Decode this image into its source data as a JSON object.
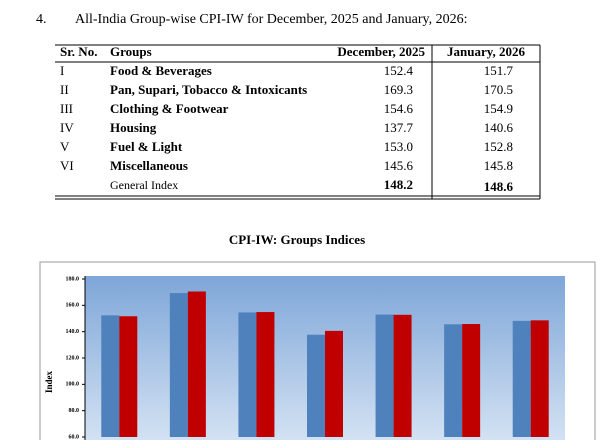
{
  "heading": {
    "number": "4.",
    "text": "All-India Group-wise CPI-IW for December, 2025 and January, 2026:"
  },
  "table": {
    "header": [
      "Sr. No.",
      "Groups",
      "December, 2025",
      "January, 2026"
    ],
    "rows": [
      [
        "I",
        "Food & Beverages",
        "152.4",
        "151.7"
      ],
      [
        "II",
        "Pan, Supari, Tobacco & Intoxicants",
        "169.3",
        "170.5"
      ],
      [
        "III",
        "Clothing & Footwear",
        "154.6",
        "154.9"
      ],
      [
        "IV",
        "Housing",
        "137.7",
        "140.6"
      ],
      [
        "V",
        "Fuel & Light",
        "153.0",
        "152.8"
      ],
      [
        "VI",
        "Miscellaneous",
        "145.6",
        "145.8"
      ]
    ],
    "total": {
      "label": "General Index",
      "values": [
        "148.2",
        "148.6"
      ]
    }
  },
  "chart_data": {
    "type": "bar",
    "title": "CPI-IW: Groups Indices",
    "y_label": "Index",
    "categories": [
      null,
      null,
      null,
      null,
      null,
      null,
      null
    ],
    "series": [
      {
        "color": "#4f81bd",
        "values": [
          152.4,
          169.3,
          154.6,
          137.7,
          153.0,
          145.6,
          148.2
        ]
      },
      {
        "color": "#c00000",
        "values": [
          151.7,
          170.5,
          154.9,
          140.6,
          152.8,
          145.8,
          148.6
        ]
      }
    ],
    "ylim": [
      60,
      180
    ],
    "yticks": [
      {
        "value": 60,
        "label": "60.0"
      },
      {
        "value": 80,
        "label": "80.0"
      },
      {
        "value": 100,
        "label": "100.0"
      },
      {
        "value": 120,
        "label": "120.0"
      },
      {
        "value": 140,
        "label": "140.0"
      },
      {
        "value": 160,
        "label": "160.0"
      },
      {
        "value": 180,
        "label": "180.0"
      }
    ]
  }
}
